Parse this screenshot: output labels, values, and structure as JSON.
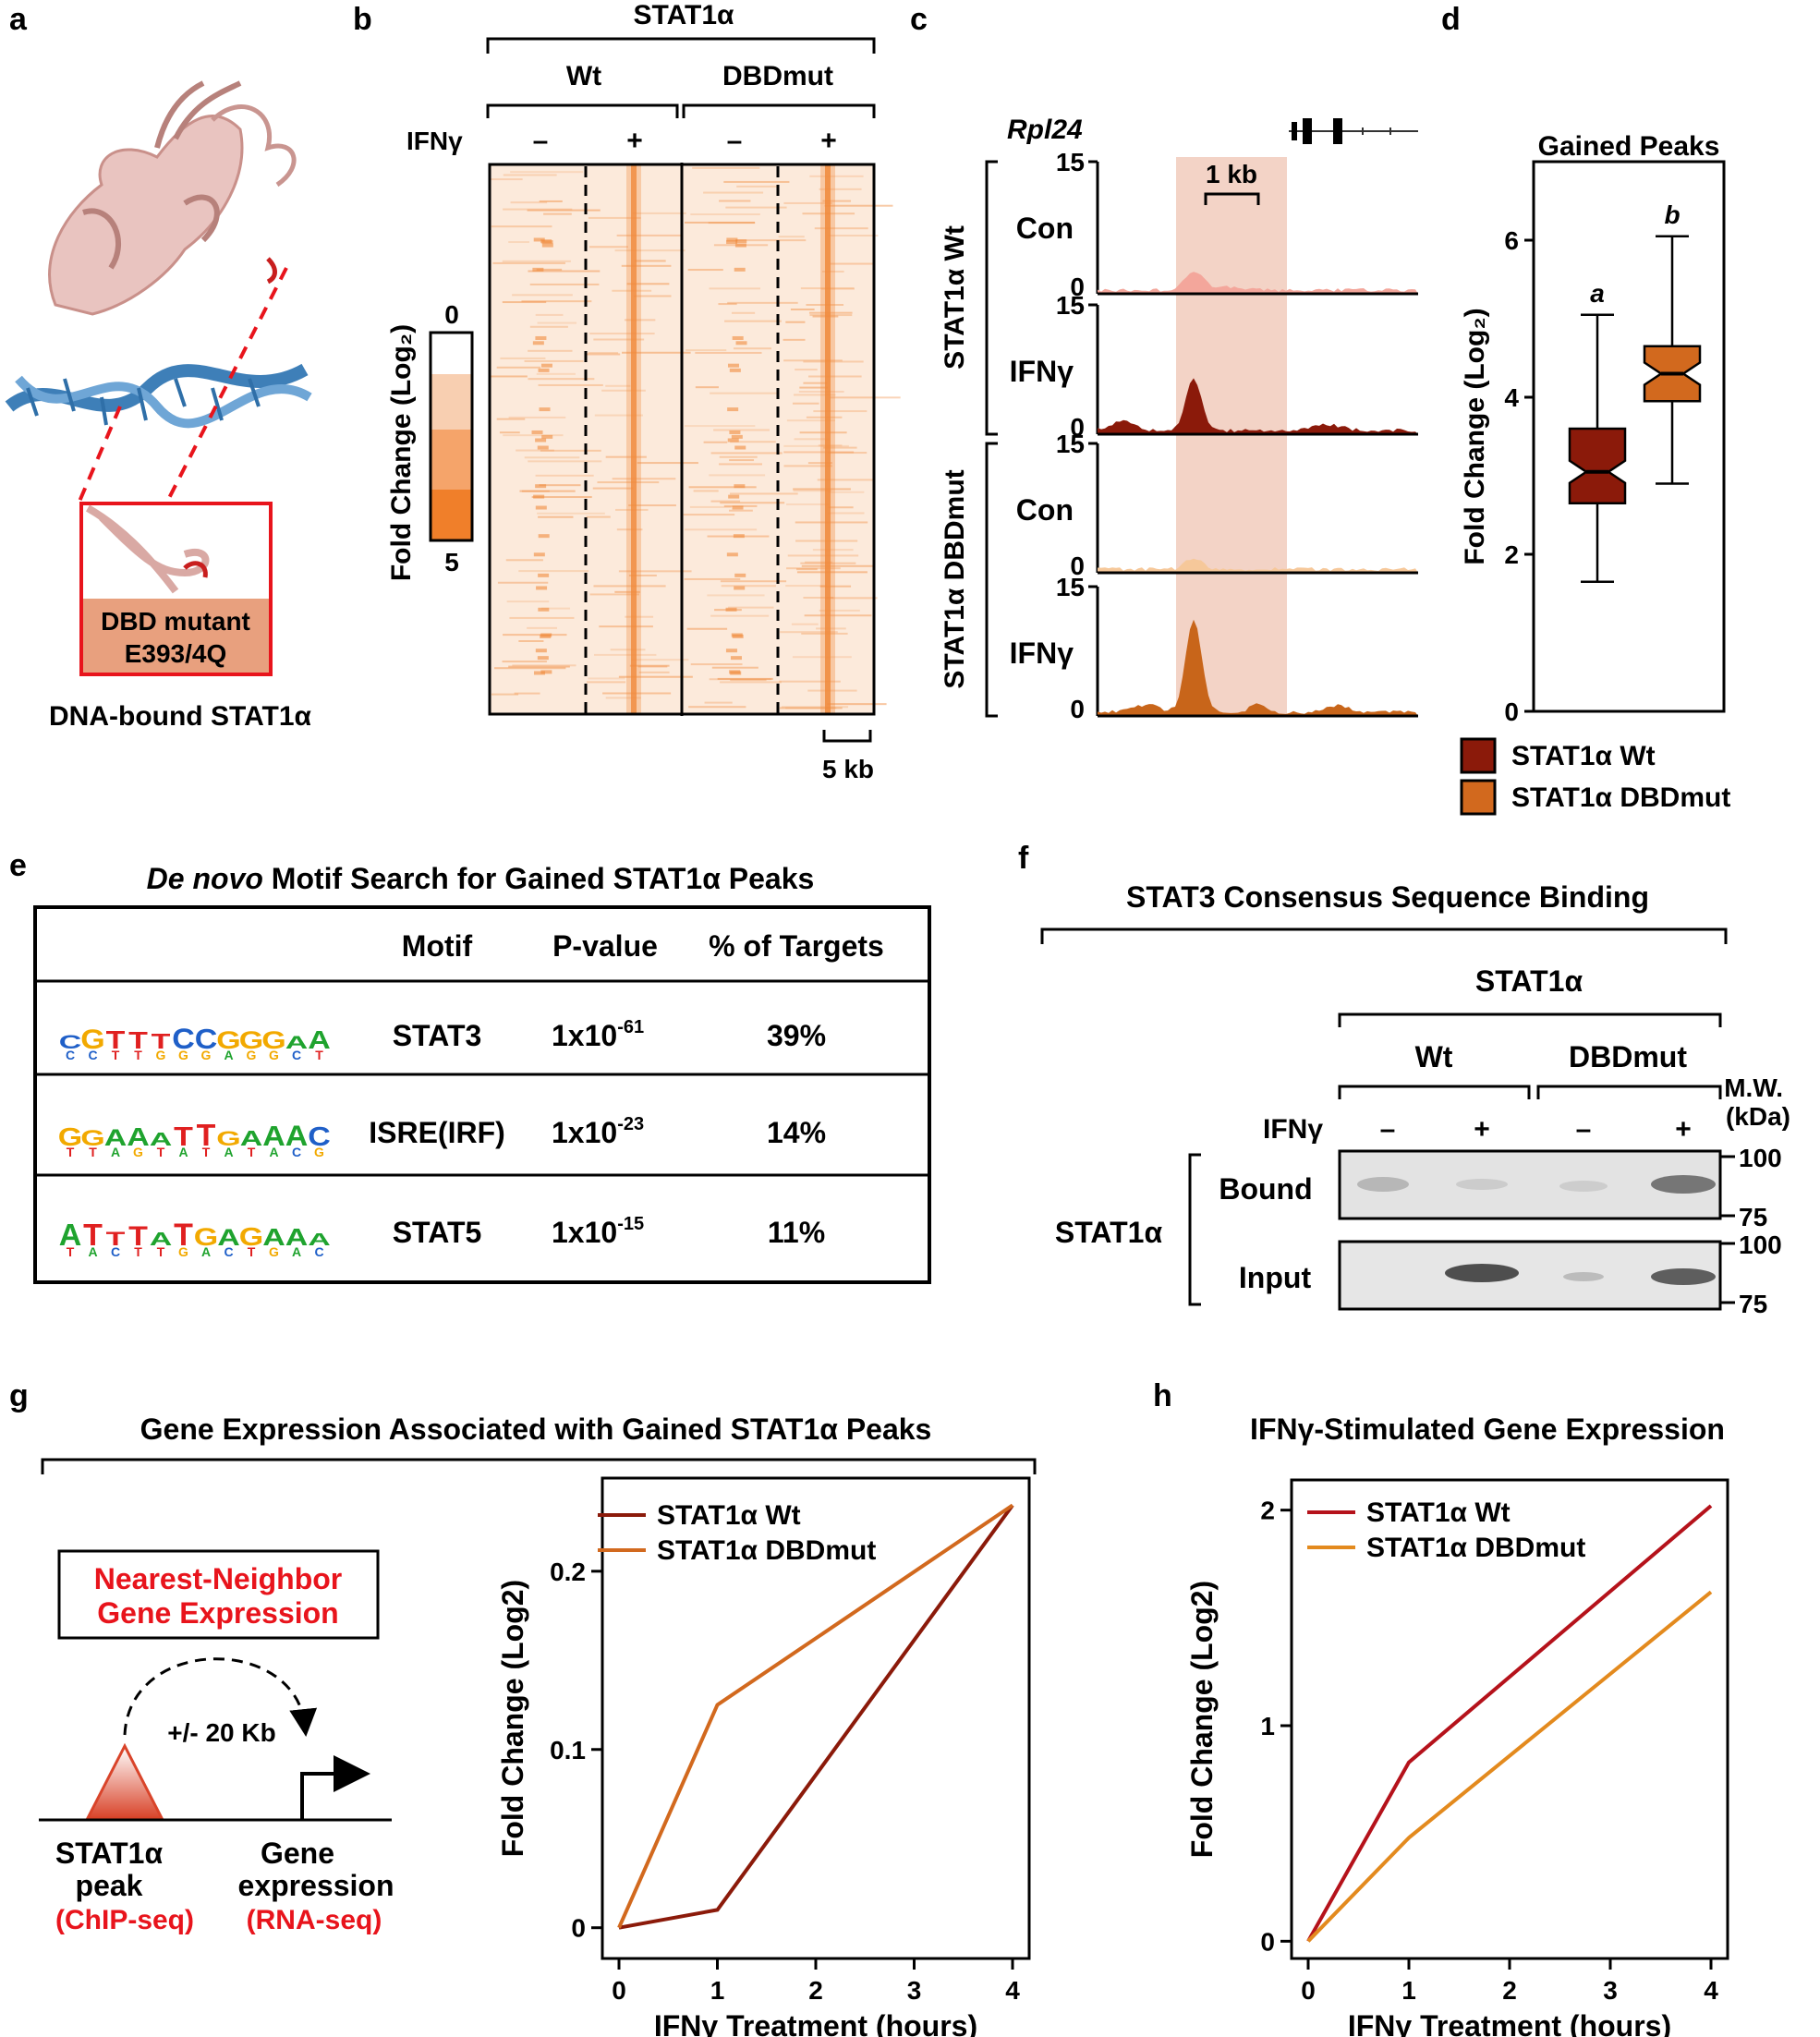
{
  "colors": {
    "wt": "#8B1A0A",
    "dbd": "#D2691E",
    "heatmap": "#F08A3C",
    "red_text": "#E8141C",
    "highlight": "#F3D3C6"
  },
  "panel_a": {
    "label": "a",
    "inset_text_1": "DBD mutant",
    "inset_text_2": "E393/4Q",
    "caption": "DNA-bound STAT1α"
  },
  "panel_b": {
    "label": "b",
    "top_label": "STAT1α",
    "group_wt": "Wt",
    "group_dbd": "DBDmut",
    "ifn_label": "IFNγ",
    "minus": "–",
    "plus": "+",
    "scale_label": "5 kb",
    "colorbar_title": "Fold Change (Log₂)",
    "colorbar_min": "0",
    "colorbar_max": "5"
  },
  "panel_c": {
    "label": "c",
    "gene": "Rpl24",
    "scale": "1 kb",
    "group_wt": "STAT1α Wt",
    "group_dbd": "STAT1α DBDmut",
    "tracks": [
      {
        "name": "Con",
        "ymax": "15",
        "ymin": "0"
      },
      {
        "name": "IFNγ",
        "ymax": "15",
        "ymin": "0"
      },
      {
        "name": "Con",
        "ymax": "15",
        "ymin": "0"
      },
      {
        "name": "IFNγ",
        "ymax": "15",
        "ymin": "0"
      }
    ]
  },
  "panel_d": {
    "label": "d",
    "legend": [
      "STAT1α Wt",
      "STAT1α DBDmut"
    ]
  },
  "panel_e": {
    "label": "e",
    "title_italic": "De novo",
    "title_rest": " Motif Search for Gained STAT1α Peaks",
    "headers": [
      "Motif",
      "P-value",
      "% of Targets"
    ],
    "rows": [
      {
        "logo": "CGTTTCCGGGAA",
        "motif": "STAT3",
        "p_base": "1x10",
        "p_exp": "-61",
        "pct": "39%"
      },
      {
        "logo": "GGAAATTGAAAC",
        "motif": "ISRE(IRF)",
        "p_base": "1x10",
        "p_exp": "-23",
        "pct": "14%"
      },
      {
        "logo": "ATTTATGAGAAA",
        "motif": "STAT5",
        "p_base": "1x10",
        "p_exp": "-15",
        "pct": "11%"
      }
    ]
  },
  "panel_f": {
    "label": "f",
    "title": "STAT3 Consensus Sequence Binding",
    "sub_title": "STAT1α",
    "group_wt": "Wt",
    "group_dbd": "DBDmut",
    "mw_1": "M.W.",
    "mw_2": "(kDa)",
    "ifn_label": "IFNγ",
    "lanes": [
      "–",
      "+",
      "–",
      "+"
    ],
    "row_group": "STAT1α",
    "row_bound": "Bound",
    "row_input": "Input",
    "markers": [
      "100",
      "75",
      "100",
      "75"
    ]
  },
  "panel_g": {
    "label": "g",
    "title": "Gene Expression Associated with Gained STAT1α Peaks",
    "box_1": "Nearest-Neighbor",
    "box_2": "Gene Expression",
    "distance": "+/- 20 Kb",
    "peak_1": "STAT1α",
    "peak_2": "peak",
    "peak_3": "(ChIP-seq)",
    "gene_1": "Gene",
    "gene_2": "expression",
    "gene_3": "(RNA-seq)"
  },
  "panel_h": {
    "label": "h",
    "title": "IFNγ-Stimulated Gene Expression"
  },
  "chart_data": [
    {
      "type": "box",
      "title": "Gained Peaks",
      "ylabel": "Fold Change (Log₂)",
      "ylim": [
        0,
        7
      ],
      "yticks": [
        0,
        2,
        4,
        6
      ],
      "boxes": [
        {
          "name": "STAT1α Wt",
          "min": 1.65,
          "q1": 2.65,
          "median": 3.05,
          "q3": 3.6,
          "max": 5.05,
          "letter": "a"
        },
        {
          "name": "STAT1α DBDmut",
          "min": 2.9,
          "q1": 3.95,
          "median": 4.3,
          "q3": 4.65,
          "max": 6.05,
          "letter": "b"
        }
      ]
    },
    {
      "type": "line",
      "xlabel": "IFNγ Treatment (hours)",
      "ylabel": "Fold Change (Log2)",
      "x": [
        0,
        1,
        4
      ],
      "xlim": [
        0,
        4
      ],
      "ylim": [
        -0.01,
        0.245
      ],
      "xticks": [
        0,
        1,
        2,
        3,
        4
      ],
      "yticks": [
        0,
        0.1,
        0.2
      ],
      "series": [
        {
          "name": "STAT1α Wt",
          "values": [
            0,
            0.01,
            0.237
          ]
        },
        {
          "name": "STAT1α DBDmut",
          "values": [
            0,
            0.125,
            0.237
          ]
        }
      ]
    },
    {
      "type": "line",
      "xlabel": "IFNγ Treatment (hours)",
      "ylabel": "Fold Change (Log2)",
      "x": [
        0,
        1,
        4
      ],
      "xlim": [
        0,
        4
      ],
      "ylim": [
        -0.02,
        2.08
      ],
      "xticks": [
        0,
        1,
        2,
        3,
        4
      ],
      "yticks": [
        0,
        1,
        2
      ],
      "series": [
        {
          "name": "STAT1α Wt",
          "values": [
            0,
            0.83,
            2.02
          ]
        },
        {
          "name": "STAT1α DBDmut",
          "values": [
            0,
            0.48,
            1.62
          ]
        }
      ]
    }
  ]
}
